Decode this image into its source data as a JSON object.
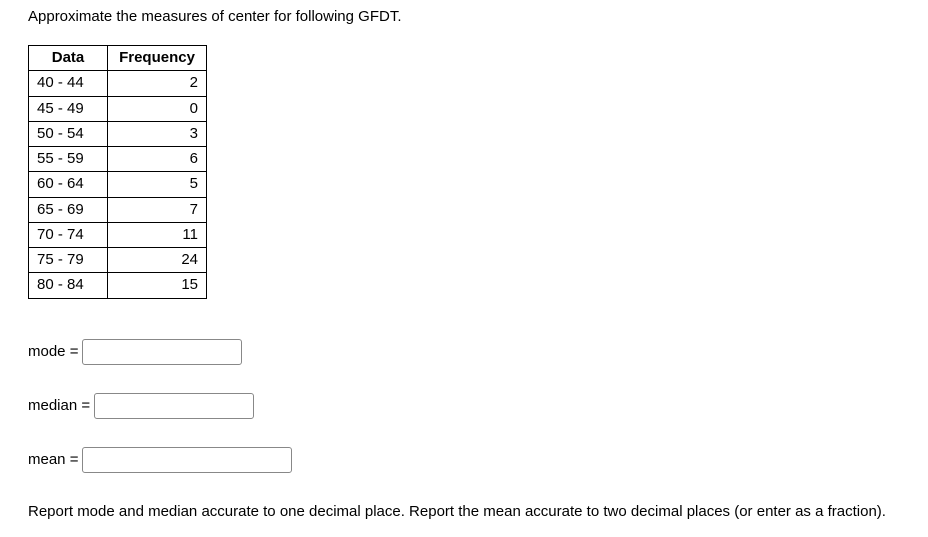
{
  "prompt": "Approximate the measures of center for following GFDT.",
  "table": {
    "headers": [
      "Data",
      "Frequency"
    ],
    "rows": [
      [
        "40 - 44",
        "2"
      ],
      [
        "45 - 49",
        "0"
      ],
      [
        "50 - 54",
        "3"
      ],
      [
        "55 - 59",
        "6"
      ],
      [
        "60 - 64",
        "5"
      ],
      [
        "65 - 69",
        "7"
      ],
      [
        "70 - 74",
        "11"
      ],
      [
        "75 - 79",
        "24"
      ],
      [
        "80 - 84",
        "15"
      ]
    ]
  },
  "answers": {
    "mode_label": "mode =",
    "mode_width": 150,
    "median_label": "median =",
    "median_width": 150,
    "mean_label": "mean =",
    "mean_width": 200
  },
  "note": "Report mode and median accurate to one decimal place. Report the mean accurate to two decimal places (or enter as a fraction)."
}
